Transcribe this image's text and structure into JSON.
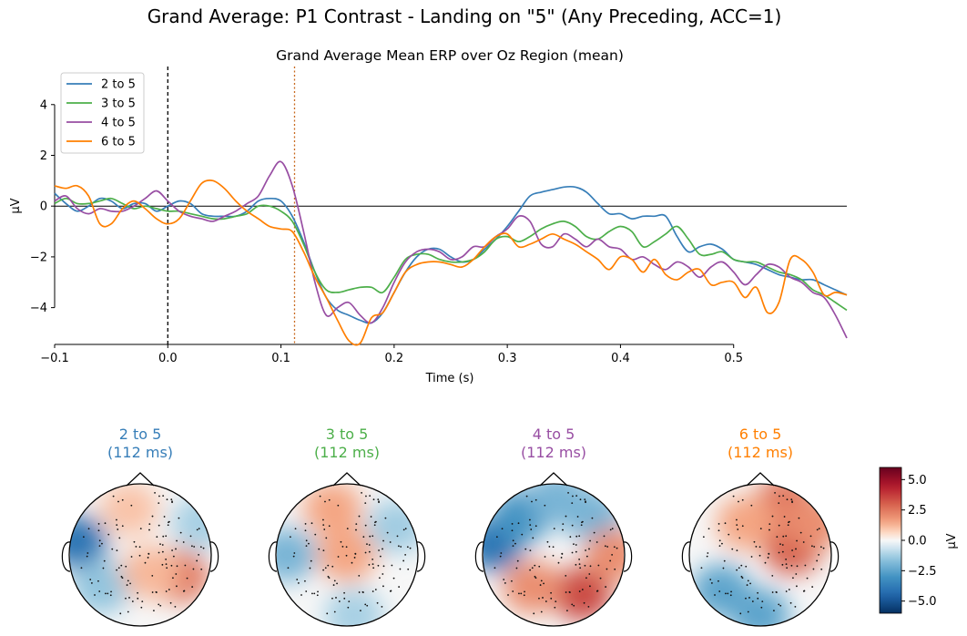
{
  "suptitle": "Grand Average: P1 Contrast - Landing on \"5\" (Any Preceding, ACC=1)",
  "chart_data": [
    {
      "type": "line",
      "title": "Grand Average Mean ERP over Oz Region (mean)",
      "xlabel": "Time (s)",
      "ylabel": "µV",
      "xlim": [
        -0.1,
        0.6
      ],
      "ylim": [
        -5.45,
        5.5
      ],
      "xticks": [
        -0.1,
        0.0,
        0.1,
        0.2,
        0.3,
        0.4,
        0.5
      ],
      "xtick_labels": [
        "−0.1",
        "0.0",
        "0.1",
        "0.2",
        "0.3",
        "0.4",
        "0.5"
      ],
      "yticks": [
        -4,
        -2,
        0,
        2,
        4
      ],
      "ytick_labels": [
        "−4",
        "−2",
        "0",
        "2",
        "4"
      ],
      "grid": false,
      "legend_position": "upper-left",
      "markers": [
        {
          "x": 0.0,
          "style": "dashed",
          "color": "#000000"
        },
        {
          "x": 0.112,
          "style": "dotted",
          "color": "#c8691e"
        }
      ],
      "x": [
        -0.1,
        -0.09,
        -0.08,
        -0.07,
        -0.06,
        -0.05,
        -0.04,
        -0.03,
        -0.02,
        -0.01,
        0.0,
        0.01,
        0.02,
        0.03,
        0.04,
        0.05,
        0.06,
        0.07,
        0.08,
        0.09,
        0.1,
        0.11,
        0.12,
        0.13,
        0.14,
        0.15,
        0.16,
        0.17,
        0.18,
        0.19,
        0.2,
        0.21,
        0.22,
        0.23,
        0.24,
        0.25,
        0.26,
        0.27,
        0.28,
        0.29,
        0.3,
        0.31,
        0.32,
        0.33,
        0.34,
        0.35,
        0.36,
        0.37,
        0.38,
        0.39,
        0.4,
        0.41,
        0.42,
        0.43,
        0.44,
        0.45,
        0.46,
        0.47,
        0.48,
        0.49,
        0.5,
        0.51,
        0.52,
        0.53,
        0.54,
        0.55,
        0.56,
        0.57,
        0.58,
        0.59,
        0.6
      ],
      "series": [
        {
          "name": "2 to 5",
          "color": "#377eb8",
          "values": [
            0.5,
            0.1,
            -0.2,
            0.0,
            0.3,
            0.2,
            -0.1,
            0.1,
            0.1,
            -0.2,
            0.0,
            0.2,
            0.1,
            -0.3,
            -0.4,
            -0.4,
            -0.4,
            -0.2,
            0.2,
            0.3,
            0.2,
            -0.4,
            -1.4,
            -2.6,
            -3.6,
            -4.1,
            -4.3,
            -4.5,
            -4.6,
            -4.2,
            -3.4,
            -2.6,
            -2.0,
            -1.7,
            -1.7,
            -2.0,
            -2.2,
            -2.1,
            -1.7,
            -1.3,
            -0.8,
            -0.2,
            0.4,
            0.55,
            0.65,
            0.75,
            0.75,
            0.55,
            0.1,
            -0.3,
            -0.3,
            -0.5,
            -0.4,
            -0.4,
            -0.4,
            -1.2,
            -1.8,
            -1.6,
            -1.5,
            -1.7,
            -2.1,
            -2.2,
            -2.3,
            -2.5,
            -2.7,
            -2.8,
            -2.9,
            -2.9,
            -3.1,
            -3.3,
            -3.5
          ]
        },
        {
          "name": "3 to 5",
          "color": "#4daf4a",
          "values": [
            0.1,
            0.3,
            0.1,
            0.1,
            0.2,
            0.3,
            0.1,
            -0.1,
            0.0,
            -0.1,
            -0.2,
            -0.2,
            -0.3,
            -0.4,
            -0.5,
            -0.5,
            -0.4,
            -0.3,
            0.0,
            0.0,
            -0.2,
            -0.6,
            -1.5,
            -2.6,
            -3.3,
            -3.4,
            -3.3,
            -3.2,
            -3.2,
            -3.4,
            -2.8,
            -2.1,
            -1.9,
            -1.9,
            -2.1,
            -2.2,
            -2.2,
            -2.1,
            -1.8,
            -1.3,
            -1.2,
            -1.4,
            -1.2,
            -0.9,
            -0.7,
            -0.6,
            -0.8,
            -1.2,
            -1.3,
            -1.0,
            -0.8,
            -1.0,
            -1.6,
            -1.4,
            -1.1,
            -0.8,
            -1.3,
            -1.9,
            -1.9,
            -1.8,
            -2.1,
            -2.2,
            -2.2,
            -2.4,
            -2.6,
            -2.7,
            -2.9,
            -3.3,
            -3.5,
            -3.8,
            -4.1
          ]
        },
        {
          "name": "4 to 5",
          "color": "#984ea3",
          "values": [
            0.2,
            0.4,
            -0.1,
            -0.3,
            -0.1,
            -0.2,
            -0.2,
            0.0,
            0.3,
            0.6,
            0.2,
            -0.2,
            -0.4,
            -0.5,
            -0.6,
            -0.4,
            -0.2,
            0.1,
            0.4,
            1.2,
            1.75,
            0.8,
            -1.0,
            -3.0,
            -4.3,
            -4.0,
            -3.8,
            -4.3,
            -4.6,
            -4.0,
            -3.0,
            -2.2,
            -1.8,
            -1.7,
            -1.8,
            -2.1,
            -2.0,
            -1.6,
            -1.6,
            -1.2,
            -0.9,
            -0.4,
            -0.6,
            -1.5,
            -1.6,
            -1.1,
            -1.3,
            -1.6,
            -1.3,
            -1.6,
            -1.7,
            -2.1,
            -2.0,
            -2.3,
            -2.5,
            -2.2,
            -2.4,
            -2.8,
            -2.4,
            -2.2,
            -2.6,
            -3.1,
            -2.7,
            -2.3,
            -2.4,
            -2.8,
            -3.0,
            -3.4,
            -3.6,
            -4.3,
            -5.2
          ]
        },
        {
          "name": "6 to 5",
          "color": "#ff7f00",
          "values": [
            0.8,
            0.7,
            0.8,
            0.4,
            -0.7,
            -0.7,
            -0.1,
            0.2,
            -0.1,
            -0.5,
            -0.7,
            -0.5,
            0.2,
            0.9,
            1.0,
            0.7,
            0.2,
            -0.2,
            -0.5,
            -0.8,
            -0.9,
            -1.0,
            -1.8,
            -2.8,
            -3.6,
            -4.5,
            -5.3,
            -5.4,
            -4.4,
            -4.2,
            -3.4,
            -2.6,
            -2.3,
            -2.2,
            -2.2,
            -2.3,
            -2.4,
            -2.1,
            -1.6,
            -1.2,
            -1.1,
            -1.6,
            -1.5,
            -1.3,
            -1.1,
            -1.3,
            -1.5,
            -1.8,
            -2.1,
            -2.5,
            -2.0,
            -2.1,
            -2.6,
            -2.1,
            -2.7,
            -2.9,
            -2.6,
            -2.5,
            -3.1,
            -3.0,
            -3.0,
            -3.6,
            -3.2,
            -4.2,
            -3.8,
            -2.1,
            -2.1,
            -2.6,
            -3.5,
            -3.4,
            -3.5
          ]
        }
      ]
    },
    {
      "type": "heatmap",
      "subtype": "topomap",
      "time_label": "(112 ms)",
      "colormap": "RdBu_r",
      "vlim": [
        -6,
        6
      ],
      "colorbar_label": "µV",
      "colorbar_ticks": [
        5.0,
        2.5,
        0.0,
        -2.5,
        -5.0
      ],
      "colorbar_tick_labels": [
        "5.0",
        "2.5",
        "0.0",
        "−2.5",
        "−5.0"
      ],
      "maps": [
        {
          "title": "2 to 5",
          "color": "#377eb8",
          "blobs": [
            {
              "x": -0.88,
              "y": 0.18,
              "value": -4.0
            },
            {
              "x": -0.55,
              "y": -0.45,
              "value": -1.5
            },
            {
              "x": 0.55,
              "y": -0.3,
              "value": 2.5
            },
            {
              "x": -0.15,
              "y": 0.65,
              "value": 1.0
            },
            {
              "x": 0.85,
              "y": 0.45,
              "value": -1.2
            },
            {
              "x": 0.15,
              "y": -0.25,
              "value": 1.2
            }
          ]
        },
        {
          "title": "3 to 5",
          "color": "#4daf4a",
          "blobs": [
            {
              "x": -0.85,
              "y": 0.0,
              "value": -2.0
            },
            {
              "x": 0.7,
              "y": 0.4,
              "value": -1.3
            },
            {
              "x": 0.0,
              "y": 0.0,
              "value": 1.5
            },
            {
              "x": -0.2,
              "y": 0.65,
              "value": 1.5
            },
            {
              "x": 0.1,
              "y": -0.85,
              "value": -1.2
            }
          ]
        },
        {
          "title": "4 to 5",
          "color": "#984ea3",
          "blobs": [
            {
              "x": -0.85,
              "y": 0.15,
              "value": -4.0
            },
            {
              "x": -0.45,
              "y": 0.55,
              "value": -3.0
            },
            {
              "x": 0.05,
              "y": 0.8,
              "value": -2.0
            },
            {
              "x": 0.55,
              "y": 0.55,
              "value": -2.0
            },
            {
              "x": 0.4,
              "y": -0.55,
              "value": 3.5
            },
            {
              "x": -0.3,
              "y": -0.45,
              "value": 2.0
            },
            {
              "x": 0.85,
              "y": 0.0,
              "value": 2.0
            }
          ]
        },
        {
          "title": "6 to 5",
          "color": "#ff7f00",
          "blobs": [
            {
              "x": 0.45,
              "y": 0.1,
              "value": 3.0
            },
            {
              "x": 0.35,
              "y": 0.75,
              "value": 2.5
            },
            {
              "x": -0.55,
              "y": -0.5,
              "value": -2.5
            },
            {
              "x": 0.0,
              "y": -0.85,
              "value": -2.5
            },
            {
              "x": -0.2,
              "y": 0.45,
              "value": 1.5
            },
            {
              "x": 0.75,
              "y": 0.45,
              "value": 2.0
            }
          ]
        }
      ]
    }
  ]
}
